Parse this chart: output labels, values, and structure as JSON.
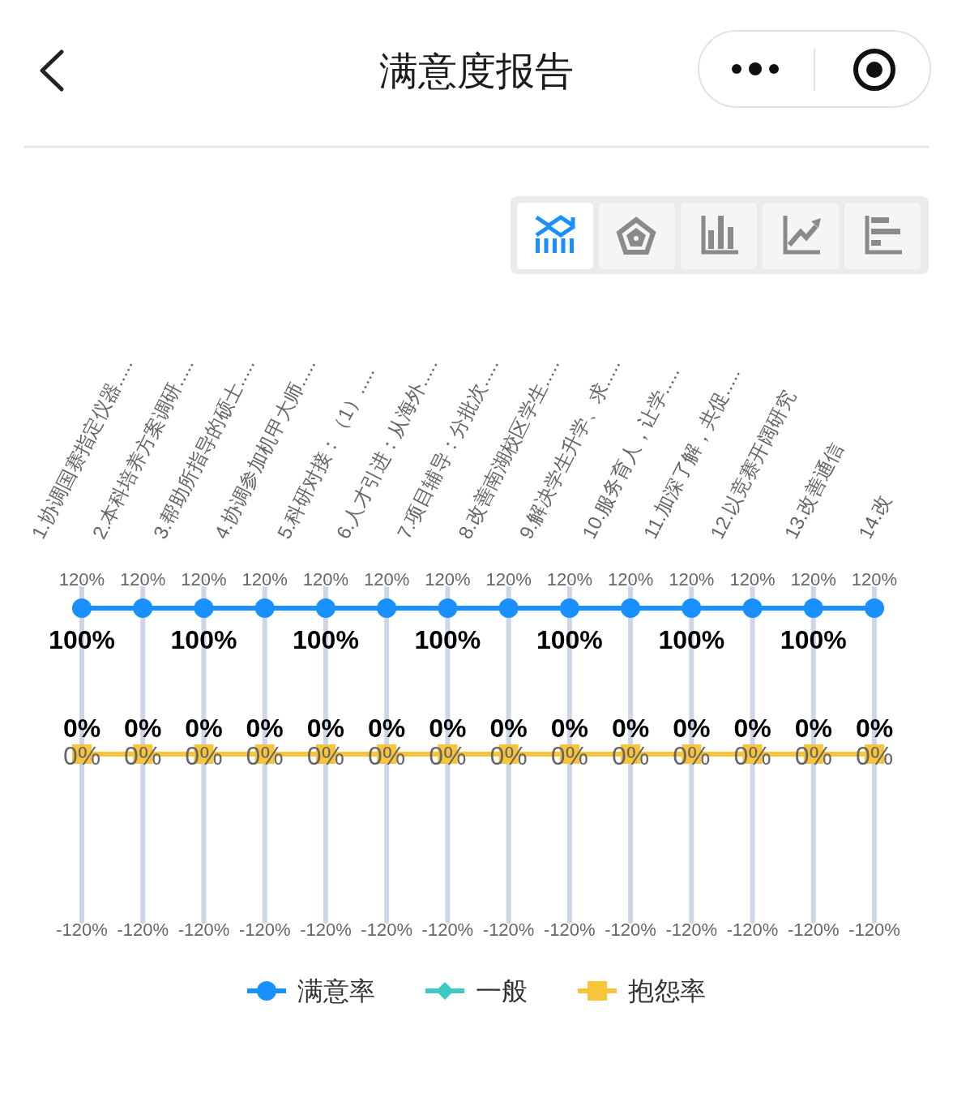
{
  "chart_data": {
    "type": "line",
    "title": "满意度报告",
    "categories": [
      "1.协调国赛指定仪器.....",
      "2.本科培养方案调研.....",
      "3.帮助所指导的硕士.....",
      "4.协调参加机甲大师.....",
      "5.科研对接：（1）.....",
      "6.人才引进：从海外.....",
      "7.项目辅导：分批次.....",
      "8.改善南湖校区学生.....",
      "9.解决学生升学、求.....",
      "10.服务育人，让学.....",
      "11.加深了解，共促.....",
      "12.以竞赛开阔研究",
      "13.改善通信",
      "14.改"
    ],
    "series": [
      {
        "name": "满意率",
        "color": "#1890ff",
        "marker": "circle",
        "values": [
          100,
          100,
          100,
          100,
          100,
          100,
          100,
          100,
          100,
          100,
          100,
          100,
          100,
          100
        ],
        "value_labels": [
          "100%",
          null,
          "100%",
          null,
          "100%",
          null,
          "100%",
          null,
          "100%",
          null,
          "100%",
          null,
          "100%",
          null
        ]
      },
      {
        "name": "一般",
        "color": "#3bcbc4",
        "marker": "diamond",
        "values": [
          null,
          null,
          null,
          null,
          null,
          null,
          null,
          null,
          null,
          null,
          null,
          null,
          null,
          null
        ]
      },
      {
        "name": "抱怨率",
        "color": "#f8c43a",
        "marker": "square",
        "values": [
          0,
          0,
          0,
          0,
          0,
          0,
          0,
          0,
          0,
          0,
          0,
          0,
          0,
          0
        ],
        "value_labels": [
          "0%",
          "0%",
          "0%",
          "0%",
          "0%",
          "0%",
          "0%",
          "0%",
          "0%",
          "0%",
          "0%",
          "0%",
          "0%",
          "0%"
        ]
      }
    ],
    "annotations": [
      {
        "text": "0%",
        "x": "1.协调国赛指定仪器.....",
        "y": 0
      },
      {
        "text": "0%",
        "x": "2.本科培养方案调研.....",
        "y": 0
      },
      {
        "text": "0%",
        "x": "3.帮助所指导的硕士.....",
        "y": 0
      },
      {
        "text": "0%",
        "x": "4.协调参加机甲大师.....",
        "y": 0
      },
      {
        "text": "0%",
        "x": "5.科研对接：（1）.....",
        "y": 0
      },
      {
        "text": "0%",
        "x": "6.人才引进：从海外.....",
        "y": 0
      },
      {
        "text": "0%",
        "x": "7.项目辅导：分批次.....",
        "y": 0
      },
      {
        "text": "0%",
        "x": "8.改善南湖校区学生.....",
        "y": 0
      },
      {
        "text": "0%",
        "x": "9.解决学生升学、求.....",
        "y": 0
      },
      {
        "text": "0%",
        "x": "10.服务育人，让学.....",
        "y": 0
      },
      {
        "text": "0%",
        "x": "11.加深了解，共促.....",
        "y": 0
      },
      {
        "text": "0%",
        "x": "12.以竞赛开阔研究",
        "y": 0
      },
      {
        "text": "0%",
        "x": "13.改善通信",
        "y": 0
      },
      {
        "text": "0%",
        "x": "14.改",
        "y": 0
      }
    ],
    "ylim": [
      -120,
      120
    ],
    "yticks": [
      {
        "value": -120,
        "label": "-120%"
      },
      {
        "value": 120,
        "label": "120%"
      }
    ],
    "grid": "x",
    "legend": "bottom"
  }
}
